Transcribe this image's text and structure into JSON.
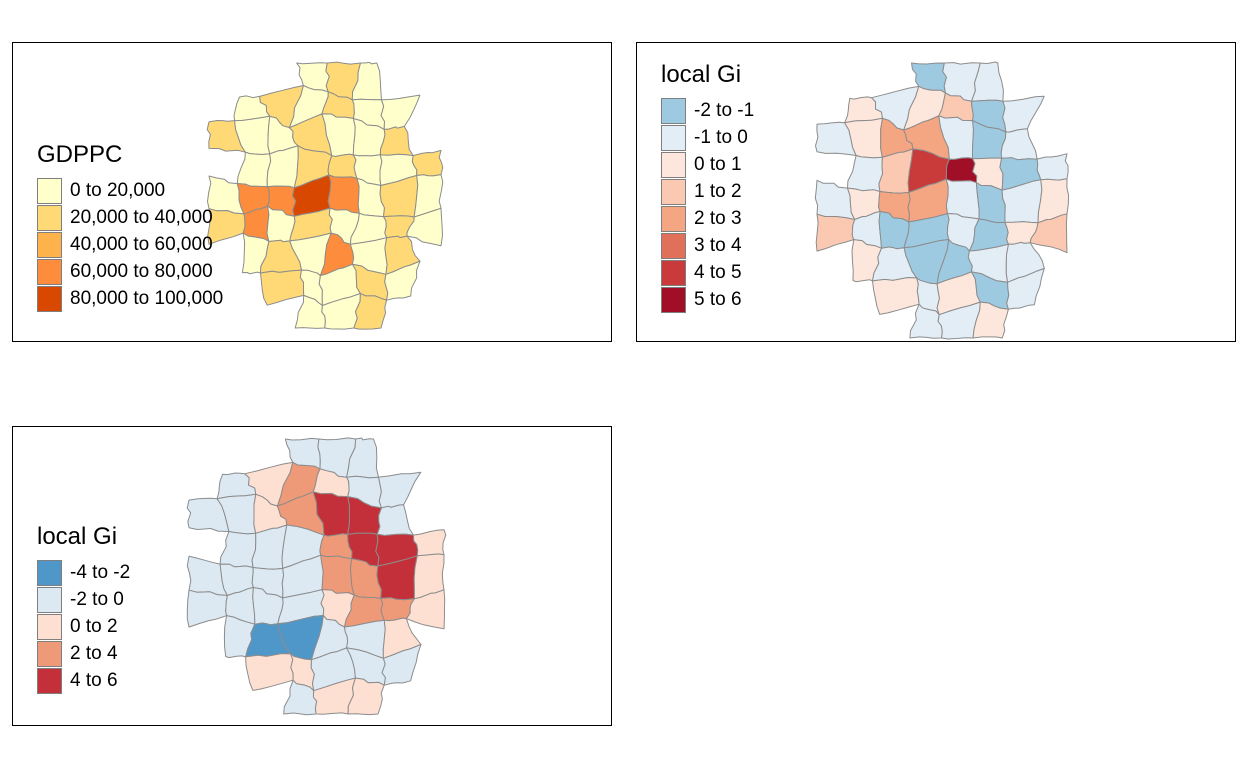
{
  "maps": [
    {
      "id": "gdppc",
      "legend": {
        "title": "GDPPC",
        "classes": [
          {
            "label": "0 to 20,000",
            "color": "#ffffcc"
          },
          {
            "label": "20,000 to 40,000",
            "color": "#fed976"
          },
          {
            "label": "40,000 to 60,000",
            "color": "#feb24c"
          },
          {
            "label": "60,000 to 80,000",
            "color": "#fd8d3c"
          },
          {
            "label": "80,000 to 100,000",
            "color": "#d94801"
          }
        ]
      },
      "region_class_indices": [
        0,
        1,
        0,
        0,
        1,
        0,
        1,
        0,
        0,
        1,
        0,
        0,
        1,
        0,
        0,
        1,
        0,
        0,
        1,
        1,
        0,
        0,
        1,
        0,
        3,
        3,
        4,
        3,
        0,
        1,
        0,
        1,
        3,
        0,
        1,
        0,
        0,
        1,
        0,
        0,
        1,
        0,
        3,
        0,
        1,
        1,
        0,
        0,
        1,
        0,
        0,
        0,
        1,
        0,
        0,
        1,
        0,
        0,
        1,
        0
      ]
    },
    {
      "id": "local-gi-1",
      "legend": {
        "title": "local Gi",
        "classes": [
          {
            "label": "-2 to -1",
            "color": "#9ecae1"
          },
          {
            "label": "-1 to 0",
            "color": "#e3edf5"
          },
          {
            "label": "0 to 1",
            "color": "#fde7dc"
          },
          {
            "label": "1 to 2",
            "color": "#fbc9b2"
          },
          {
            "label": "2 to 3",
            "color": "#f4a582"
          },
          {
            "label": "3 to 4",
            "color": "#e0705a"
          },
          {
            "label": "4 to 5",
            "color": "#c93b3b"
          },
          {
            "label": "5 to 6",
            "color": "#a10f26"
          }
        ]
      },
      "region_class_indices": [
        0,
        1,
        1,
        2,
        1,
        2,
        3,
        0,
        1,
        1,
        2,
        4,
        4,
        1,
        0,
        1,
        1,
        3,
        6,
        7,
        2,
        0,
        1,
        1,
        2,
        4,
        4,
        1,
        0,
        1,
        2,
        3,
        1,
        0,
        0,
        1,
        0,
        2,
        3,
        2,
        1,
        0,
        0,
        1,
        1,
        2,
        1,
        2,
        0,
        1,
        1,
        1,
        2,
        2,
        2,
        1,
        0,
        1,
        2,
        0
      ]
    },
    {
      "id": "local-gi-2",
      "legend": {
        "title": "local Gi",
        "classes": [
          {
            "label": "-4 to -2",
            "color": "#4f97c9"
          },
          {
            "label": "-2 to 0",
            "color": "#dce9f3"
          },
          {
            "label": "0 to 2",
            "color": "#fde0d2"
          },
          {
            "label": "2 to 4",
            "color": "#ee9a78"
          },
          {
            "label": "4 to 6",
            "color": "#c4303a"
          }
        ]
      },
      "region_class_indices": [
        1,
        1,
        1,
        1,
        2,
        3,
        2,
        1,
        1,
        1,
        1,
        2,
        3,
        4,
        4,
        1,
        1,
        1,
        1,
        3,
        4,
        4,
        2,
        1,
        1,
        1,
        1,
        3,
        3,
        4,
        2,
        1,
        1,
        1,
        1,
        2,
        3,
        3,
        2,
        1,
        0,
        0,
        1,
        1,
        2,
        2,
        2,
        1,
        1,
        1,
        1,
        2,
        2,
        2,
        1,
        1,
        1,
        1,
        2,
        2
      ]
    }
  ]
}
